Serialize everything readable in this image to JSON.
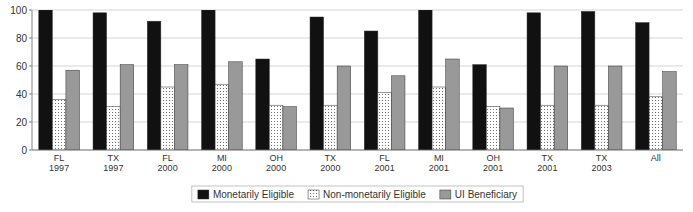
{
  "chart_data": {
    "type": "bar",
    "categories": [
      "FL\n1997",
      "TX\n1997",
      "FL\n2000",
      "MI\n2000",
      "OH\n2000",
      "TX\n2000",
      "FL\n2001",
      "MI\n2001",
      "OH\n2001",
      "TX\n2001",
      "TX\n2003",
      "All"
    ],
    "series": [
      {
        "name": "Monetarily Eligible",
        "color": "#111111",
        "values": [
          100,
          98,
          92,
          100,
          65,
          95,
          85,
          100,
          61,
          98,
          99,
          91
        ]
      },
      {
        "name": "Non-monetarily Eligible",
        "color": "#ffffff",
        "values": [
          36,
          31,
          45,
          47,
          32,
          32,
          41,
          45,
          31,
          32,
          32,
          38
        ]
      },
      {
        "name": "UI Beneficiary",
        "color": "#999999",
        "values": [
          57,
          61,
          61,
          63,
          31,
          60,
          53,
          65,
          30,
          60,
          60,
          56
        ]
      }
    ],
    "ylim": [
      0,
      100
    ],
    "yticks": [
      0,
      20,
      40,
      60,
      80,
      100
    ],
    "grid": true,
    "grid_color": "#bbbbbb",
    "legend": "bottom"
  }
}
